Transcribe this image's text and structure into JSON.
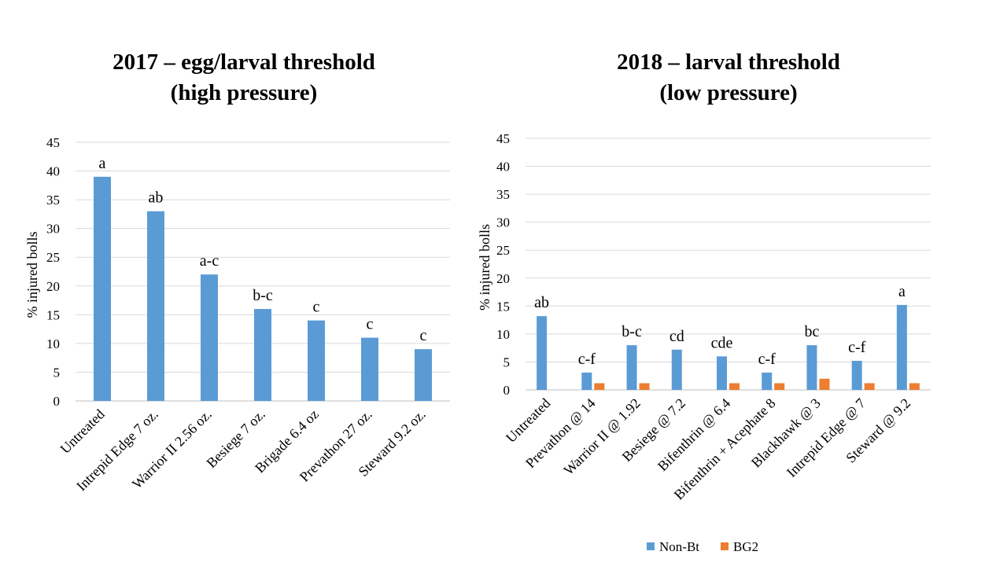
{
  "titles": {
    "left_line1": "2017 – egg/larval threshold",
    "left_line2": "(high pressure)",
    "right_line1": "2018 – larval threshold",
    "right_line2": "(low pressure)"
  },
  "legend": [
    {
      "name": "Non-Bt",
      "color": "#5b9bd5"
    },
    {
      "name": "BG2",
      "color": "#ed7d31"
    }
  ],
  "chart_data": [
    {
      "type": "bar",
      "title": "2017 – egg/larval threshold (high pressure)",
      "ylabel": "% injured bolls",
      "ylim": [
        0,
        45
      ],
      "yticks": [
        0,
        5,
        10,
        15,
        20,
        25,
        30,
        35,
        40,
        45
      ],
      "grid": true,
      "categories": [
        "Untreated",
        "Intrepid Edge 7 oz.",
        "Warrior II 2.56 oz.",
        "Besiege 7 oz.",
        "Brigade 6.4 oz",
        "Prevathon 27 oz.",
        "Steward 9.2 oz."
      ],
      "series": [
        {
          "values": [
            39,
            33,
            22,
            16,
            14,
            11,
            9
          ],
          "color": "#5b9bd5"
        }
      ],
      "annotations": [
        "a",
        "ab",
        "a-c",
        "b-c",
        "c",
        "c",
        "c"
      ]
    },
    {
      "type": "bar",
      "title": "2018 – larval threshold (low pressure)",
      "ylabel": "% injured bolls",
      "ylim": [
        0,
        45
      ],
      "yticks": [
        0,
        5,
        10,
        15,
        20,
        25,
        30,
        35,
        40,
        45
      ],
      "grid": true,
      "legend_position": "bottom",
      "categories": [
        "Untreated",
        "Prevathon @ 14",
        "Warrior II @ 1.92",
        "Besiege @ 7.2",
        "Bifenthrin @ 6.4",
        "Bifenthrin + Acephate 8",
        "Blackhawk @ 3",
        "Intrepid Edge @ 7",
        "Steward @ 9.2"
      ],
      "series": [
        {
          "name": "Non-Bt",
          "values": [
            13.2,
            3.1,
            8,
            7.2,
            6,
            3.1,
            8,
            5.2,
            15.2
          ],
          "color": "#5b9bd5"
        },
        {
          "name": "BG2",
          "values": [
            0,
            1.2,
            1.2,
            0,
            1.2,
            1.2,
            2,
            1.2,
            1.2
          ],
          "color": "#ed7d31"
        }
      ],
      "annotations": [
        "ab",
        "c-f",
        "b-c",
        "cd",
        "cde",
        "c-f",
        "bc",
        "c-f",
        "a"
      ]
    }
  ]
}
